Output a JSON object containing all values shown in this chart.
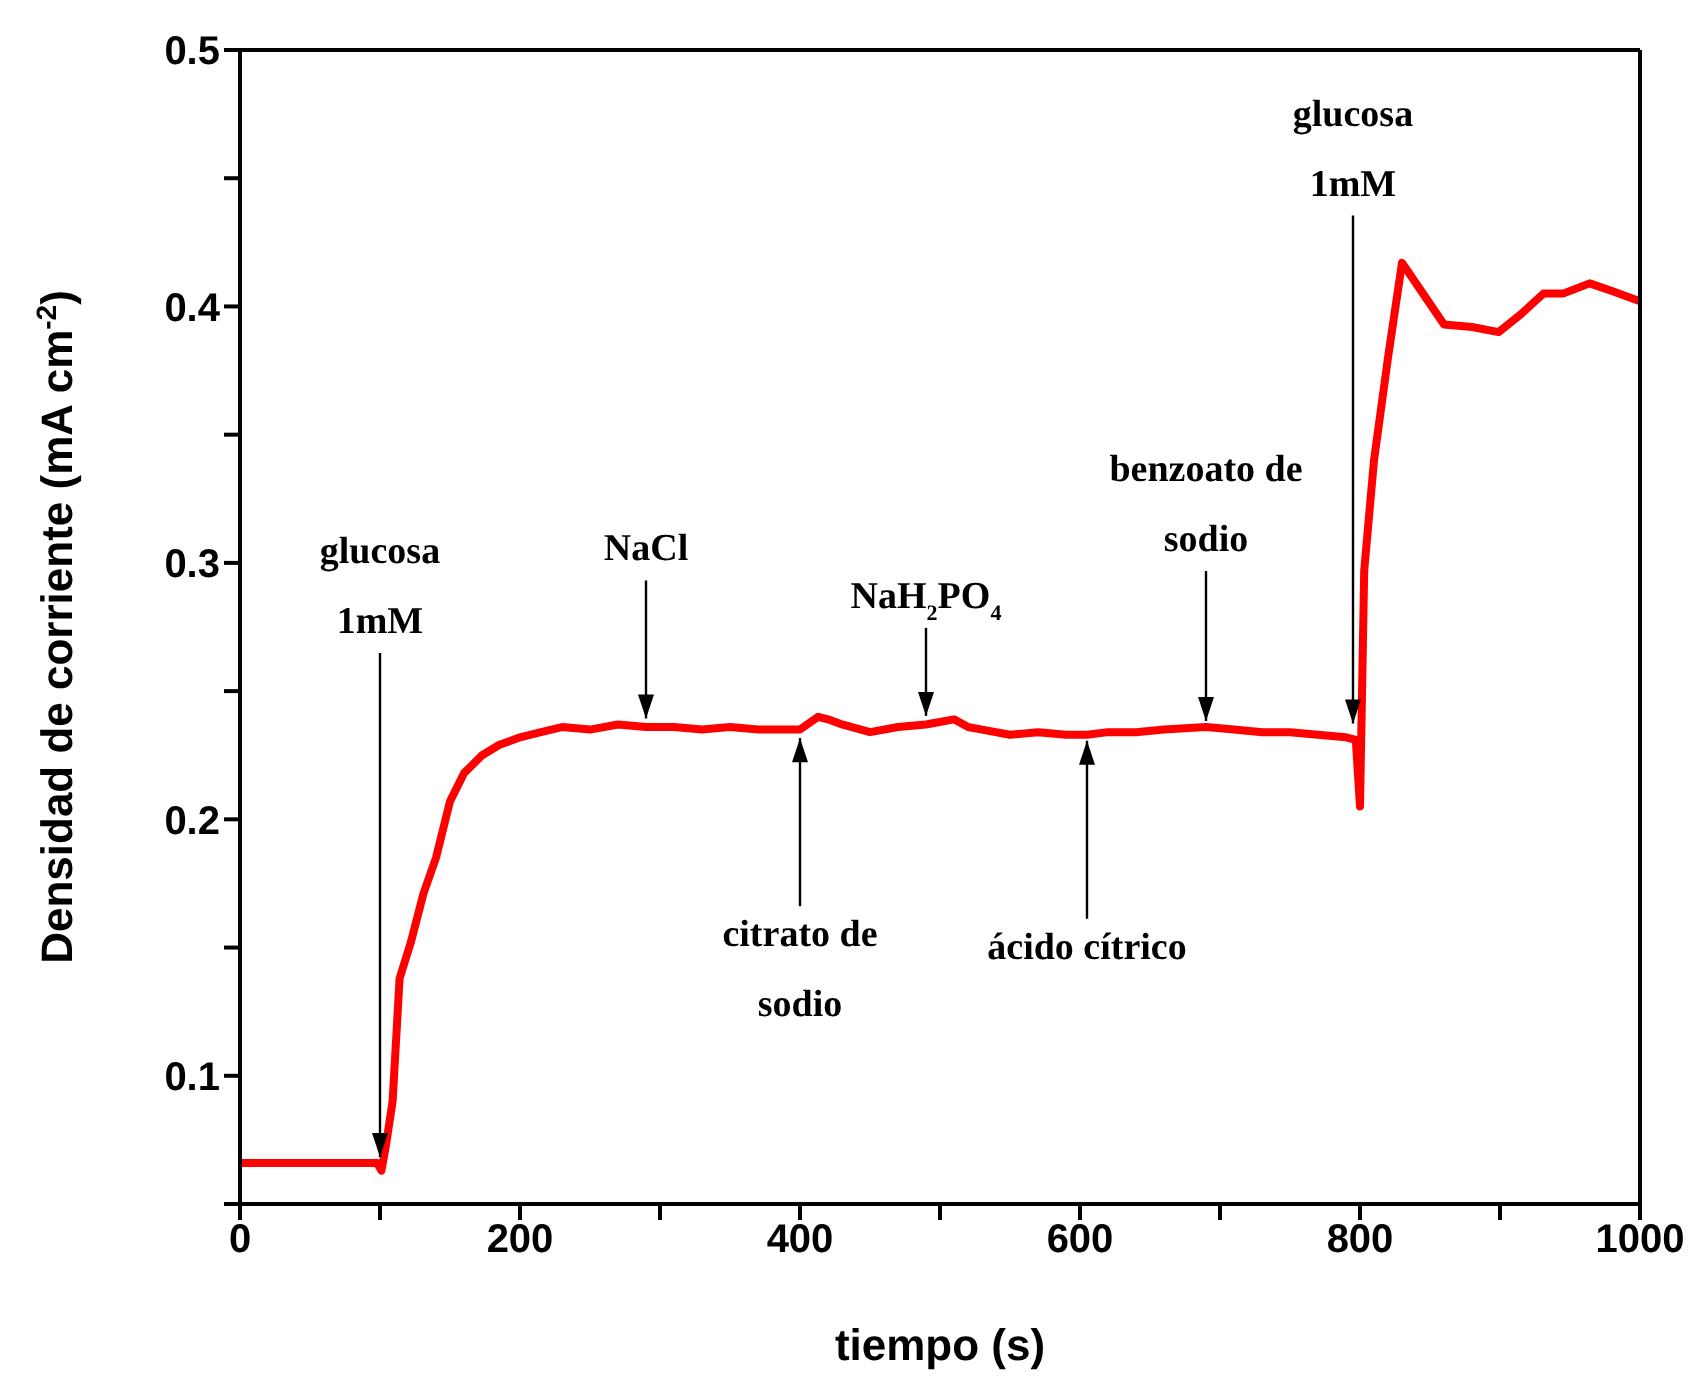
{
  "chart_data": {
    "type": "line",
    "xlabel": "tiempo (s)",
    "ylabel": "Densidad de corriente (mA cm$^{-2}$)",
    "xlim": [
      0,
      1000
    ],
    "xticks": [
      0,
      {
        "value": 100,
        "label": null
      },
      200,
      {
        "value": 300,
        "label": null
      },
      400,
      {
        "value": 500,
        "label": null
      },
      600,
      {
        "value": 700,
        "label": null
      },
      800,
      {
        "value": 900,
        "label": null
      },
      1000
    ],
    "ylim": [
      0.05,
      0.5
    ],
    "yticks": [
      {
        "value": 0.05,
        "label": null
      },
      0.1,
      {
        "value": 0.15,
        "label": null
      },
      0.2,
      {
        "value": 0.25,
        "label": null
      },
      0.3,
      {
        "value": 0.35,
        "label": null
      },
      0.4,
      {
        "value": 0.45,
        "label": null
      },
      0.5
    ],
    "grid": false,
    "marker": "none",
    "line_style": "solid",
    "series": [
      {
        "color": "#ff0000",
        "x": [
          0,
          50,
          98,
          101,
          104,
          109,
          114,
          122,
          131,
          140,
          150,
          160,
          173,
          185,
          200,
          215,
          230,
          250,
          270,
          290,
          310,
          330,
          350,
          370,
          390,
          400,
          413,
          420,
          430,
          450,
          470,
          490,
          510,
          520,
          530,
          550,
          570,
          590,
          605,
          620,
          640,
          660,
          690,
          710,
          730,
          750,
          770,
          790,
          797,
          800,
          803,
          810,
          820,
          830,
          845,
          860,
          880,
          899,
          915,
          931,
          945,
          964,
          980,
          1000
        ],
        "values": [
          0.066,
          0.066,
          0.066,
          0.063,
          0.072,
          0.09,
          0.138,
          0.152,
          0.171,
          0.185,
          0.207,
          0.218,
          0.225,
          0.229,
          0.232,
          0.234,
          0.236,
          0.235,
          0.237,
          0.236,
          0.236,
          0.235,
          0.236,
          0.235,
          0.235,
          0.235,
          0.24,
          0.239,
          0.237,
          0.234,
          0.236,
          0.237,
          0.239,
          0.236,
          0.235,
          0.233,
          0.234,
          0.233,
          0.233,
          0.234,
          0.234,
          0.235,
          0.236,
          0.235,
          0.234,
          0.234,
          0.233,
          0.232,
          0.231,
          0.205,
          0.297,
          0.34,
          0.38,
          0.417,
          0.405,
          0.393,
          0.392,
          0.39,
          0.397,
          0.405,
          0.405,
          0.409,
          0.406,
          0.402
        ]
      }
    ],
    "annotations": [
      {
        "text": "glucosa\n1mM",
        "x": 100,
        "y": 0.066
      },
      {
        "text": "NaCl",
        "x": 290,
        "y": 0.237
      },
      {
        "text": "citrato de\nsodio",
        "x": 400,
        "y": 0.234
      },
      {
        "text": "NaH$_{2}$PO$_{4}$",
        "x": 490,
        "y": 0.238
      },
      {
        "text": "ácido cítrico",
        "x": 605,
        "y": 0.233
      },
      {
        "text": "benzoato de\nsodio",
        "x": 690,
        "y": 0.236
      },
      {
        "text": "glucosa\n1mM",
        "x": 795,
        "y": 0.235
      }
    ]
  }
}
